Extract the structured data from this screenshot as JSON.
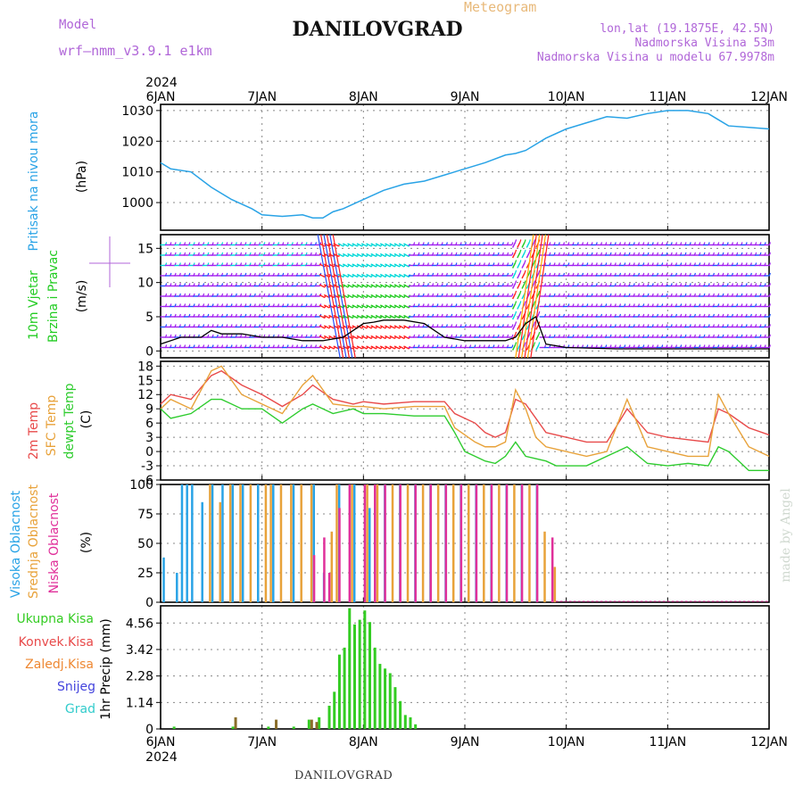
{
  "header": {
    "title": "DANILOVGRAD",
    "meteogram": "Meteogram",
    "model_label": "Model",
    "model_name": "wrf—nmm_v3.9.1  e1km",
    "lonlat": "lon,lat (19.1875E, 42.5N)",
    "altitude": "Nadmorska Visina 53m",
    "model_altitude": "Nadmorska Visina u modelu 67.9978m"
  },
  "footer": {
    "label": "DANILOVGRAD",
    "credit": "made by Angel"
  },
  "time_axis": {
    "year": "2024",
    "labels": [
      "6JAN",
      "7JAN",
      "8JAN",
      "9JAN",
      "10JAN",
      "11JAN",
      "12JAN"
    ]
  },
  "colors": {
    "pressure": "#29a3e6",
    "t2m": "#e84a4a",
    "sfc": "#e8a23a",
    "dew": "#2ecc2e",
    "cl_high": "#29a3e6",
    "cl_mid": "#e8a23a",
    "cl_low": "#e0309a",
    "precip": "#33cc22",
    "conv": "#e84a4a",
    "graupel": "#33cccc",
    "snow": "#4444dd",
    "frz": "#ee8833",
    "wind_a": "#a020f0",
    "wind_b": "#2050ff",
    "wind_c": "#00d8d8",
    "wind_d": "#22cc22",
    "wind_e": "#ff2020"
  },
  "chart_data": [
    {
      "type": "line",
      "panel": "pressure",
      "ylabels": [
        "Pritisak na nivou mora",
        "(hPa)"
      ],
      "yticks": [
        "1000",
        "1010",
        "1020",
        "1030"
      ],
      "ylim": [
        991,
        1032
      ],
      "xlim": [
        0,
        6
      ],
      "grid": true,
      "series": [
        {
          "x": [
            0,
            0.1,
            0.3,
            0.5,
            0.7,
            0.9,
            1.0,
            1.2,
            1.4,
            1.5,
            1.6,
            1.7,
            1.8,
            2.0,
            2.2,
            2.4,
            2.6,
            2.8,
            3.0,
            3.2,
            3.4,
            3.5,
            3.6,
            3.7,
            3.8,
            4.0,
            4.2,
            4.4,
            4.6,
            4.8,
            5.0,
            5.2,
            5.4,
            5.5,
            5.6,
            5.8,
            6.0
          ],
          "y": [
            1013,
            1011,
            1010,
            1005,
            1001,
            998,
            996,
            995.5,
            996,
            995,
            995,
            997,
            998,
            1001,
            1004,
            1006,
            1007,
            1009,
            1011,
            1013,
            1015.5,
            1016,
            1017,
            1019,
            1021,
            1024,
            1026,
            1028,
            1027.5,
            1029,
            1030,
            1030,
            1029,
            1027,
            1025,
            1024.5,
            1024
          ]
        }
      ]
    },
    {
      "type": "line",
      "panel": "wind",
      "ylabels": [
        "10m Vjetar",
        "Brzina i Pravac",
        "(m/s)"
      ],
      "yticks": [
        "0",
        "5",
        "10",
        "15"
      ],
      "ylim": [
        -1,
        17
      ],
      "xlim": [
        0,
        6
      ],
      "grid": true,
      "series": [
        {
          "name": "speed",
          "x": [
            0,
            0.2,
            0.4,
            0.5,
            0.6,
            0.8,
            1.0,
            1.2,
            1.4,
            1.6,
            1.8,
            1.9,
            2.0,
            2.1,
            2.2,
            2.4,
            2.6,
            2.8,
            3.0,
            3.2,
            3.4,
            3.5,
            3.6,
            3.7,
            3.8,
            4.0,
            4.5,
            5.0,
            5.5,
            6.0
          ],
          "y": [
            1,
            2,
            2,
            3,
            2.5,
            2.5,
            2,
            2,
            1.5,
            1.5,
            2,
            3,
            4,
            4.2,
            4.5,
            4.5,
            4,
            2,
            1.5,
            1.5,
            1.5,
            2,
            4,
            5,
            1,
            0.5,
            0.3,
            0.3,
            0.3,
            0.3
          ]
        }
      ]
    },
    {
      "type": "line",
      "panel": "temperature",
      "ylabels": [
        "2m Temp",
        "SFC Temp",
        "dewpt Temp",
        "(C)"
      ],
      "yticks": [
        "18",
        "15",
        "12",
        "9",
        "6",
        "3",
        "0",
        "-3",
        "-6"
      ],
      "ylim": [
        -6,
        19
      ],
      "xlim": [
        0,
        6
      ],
      "grid": true,
      "series": [
        {
          "name": "2m Temp",
          "x": [
            0,
            0.1,
            0.3,
            0.5,
            0.6,
            0.8,
            1.0,
            1.2,
            1.4,
            1.5,
            1.7,
            1.9,
            2.0,
            2.2,
            2.5,
            2.8,
            2.9,
            3.0,
            3.1,
            3.2,
            3.3,
            3.4,
            3.5,
            3.6,
            3.7,
            3.8,
            3.9,
            4.0,
            4.2,
            4.4,
            4.6,
            4.8,
            5.0,
            5.2,
            5.4,
            5.5,
            5.6,
            5.8,
            6.0
          ],
          "y": [
            10,
            12,
            11,
            16,
            17,
            14,
            12,
            9.5,
            12,
            14,
            11,
            10,
            10.5,
            10,
            10.5,
            10.5,
            8,
            7,
            6,
            4,
            3,
            4,
            11,
            10,
            7,
            4,
            3.5,
            3,
            2,
            2,
            9,
            4,
            3,
            2.5,
            2,
            9,
            8,
            5,
            3.5
          ]
        },
        {
          "name": "SFC Temp",
          "x": [
            0,
            0.1,
            0.3,
            0.5,
            0.6,
            0.8,
            1.0,
            1.2,
            1.4,
            1.5,
            1.7,
            1.9,
            2.0,
            2.2,
            2.5,
            2.8,
            2.9,
            3.0,
            3.1,
            3.2,
            3.3,
            3.4,
            3.5,
            3.6,
            3.7,
            3.8,
            3.9,
            4.0,
            4.2,
            4.4,
            4.6,
            4.8,
            5.0,
            5.2,
            5.4,
            5.5,
            5.6,
            5.8,
            6.0
          ],
          "y": [
            9,
            11,
            9,
            17,
            18,
            12,
            10,
            8,
            14,
            16,
            10,
            9.5,
            9.5,
            9,
            9.5,
            9.5,
            5,
            3.5,
            2,
            1,
            1,
            2,
            13,
            9,
            3,
            1,
            0.5,
            0,
            -1,
            0,
            11,
            1,
            0,
            -1,
            -1,
            12,
            8,
            1,
            -1
          ]
        },
        {
          "name": "dewpt Temp",
          "x": [
            0,
            0.1,
            0.3,
            0.5,
            0.6,
            0.8,
            1.0,
            1.2,
            1.4,
            1.5,
            1.7,
            1.9,
            2.0,
            2.2,
            2.5,
            2.8,
            2.9,
            3.0,
            3.1,
            3.2,
            3.3,
            3.4,
            3.5,
            3.6,
            3.7,
            3.8,
            3.9,
            4.0,
            4.2,
            4.4,
            4.6,
            4.8,
            5.0,
            5.2,
            5.4,
            5.5,
            5.6,
            5.8,
            6.0
          ],
          "y": [
            9,
            7,
            8,
            11,
            11,
            9,
            9,
            6,
            9,
            10,
            8,
            9,
            8,
            8,
            7.5,
            7.5,
            4,
            0,
            -1,
            -2,
            -2.5,
            -1,
            2,
            -1,
            -1.5,
            -2,
            -3,
            -3,
            -3,
            -1,
            1,
            -2.5,
            -3,
            -2.5,
            -3,
            1,
            0,
            -4,
            -4
          ]
        }
      ]
    },
    {
      "type": "bar",
      "panel": "clouds",
      "ylabels": [
        "Visoka Oblacnost",
        "Srednja Oblacnost",
        "Niska Oblacnost",
        "(%)"
      ],
      "yticks": [
        "0",
        "25",
        "50",
        "75",
        "100"
      ],
      "ylim": [
        0,
        100
      ],
      "xlim": [
        0,
        6
      ],
      "grid": true,
      "series": [
        {
          "name": "Visoka Oblacnost",
          "x": [
            0.02,
            0.15,
            0.2,
            0.25,
            0.3,
            0.4,
            0.5,
            0.6,
            0.7,
            0.8,
            0.95,
            1.1,
            1.3,
            1.5,
            1.6,
            1.75,
            1.9,
            2.05,
            2.2,
            2.35,
            2.5,
            2.65,
            2.8,
            2.95,
            3.1,
            3.25,
            3.4,
            3.55,
            3.7
          ],
          "y": [
            38,
            25,
            100,
            100,
            100,
            85,
            100,
            100,
            100,
            100,
            100,
            100,
            100,
            100,
            25,
            100,
            100,
            80,
            100,
            100,
            100,
            100,
            100,
            100,
            100,
            100,
            100,
            100,
            100
          ]
        },
        {
          "name": "Srednja Oblacnost",
          "x": [
            0.45,
            0.55,
            0.65,
            0.75,
            0.85,
            1.0,
            1.05,
            1.15,
            1.25,
            1.35,
            1.45,
            1.65,
            1.7,
            1.85,
            2.0,
            2.1,
            2.25,
            2.4,
            2.55,
            2.7,
            2.85,
            3.0,
            3.15,
            3.3,
            3.45,
            3.6,
            3.75,
            3.85
          ],
          "y": [
            100,
            85,
            100,
            100,
            100,
            100,
            100,
            100,
            100,
            100,
            100,
            60,
            100,
            100,
            100,
            100,
            100,
            100,
            100,
            100,
            100,
            100,
            100,
            100,
            100,
            100,
            60,
            30
          ]
        },
        {
          "name": "Niska Oblacnost",
          "x": [
            1.45,
            1.55,
            1.6,
            1.7,
            1.8,
            1.95,
            2.05,
            2.15,
            2.3,
            2.45,
            2.6,
            2.75,
            2.9,
            3.05,
            3.2,
            3.35,
            3.5,
            3.65,
            3.8
          ],
          "y": [
            40,
            55,
            25,
            80,
            100,
            100,
            100,
            100,
            100,
            100,
            100,
            100,
            100,
            100,
            100,
            100,
            100,
            100,
            55
          ]
        }
      ]
    },
    {
      "type": "bar",
      "panel": "precip",
      "ylabels": [
        "1hr Precip (mm)"
      ],
      "legend": [
        "Ukupna Kisa",
        "Konvek.Kisa",
        "Zaledj.Kisa",
        "Snijeg",
        "Grad"
      ],
      "yticks": [
        "0",
        "1.14",
        "2.28",
        "3.42",
        "4.56"
      ],
      "ylim": [
        0,
        5.3
      ],
      "xlim": [
        0,
        6
      ],
      "grid": true,
      "series": [
        {
          "name": "Ukupna Kisa",
          "x": [
            0.12,
            0.7,
            1.05,
            1.3,
            1.45,
            1.55,
            1.65,
            1.7,
            1.75,
            1.8,
            1.85,
            1.9,
            1.95,
            2.0,
            2.05,
            2.1,
            2.15,
            2.2,
            2.25,
            2.3,
            2.35,
            2.4,
            2.45,
            2.5
          ],
          "y": [
            0.1,
            0.1,
            0.1,
            0.1,
            0.4,
            0.5,
            1.0,
            1.6,
            3.2,
            3.5,
            5.2,
            4.5,
            4.7,
            5.1,
            4.6,
            3.5,
            2.8,
            2.6,
            2.4,
            1.8,
            1.2,
            0.6,
            0.5,
            0.2
          ]
        },
        {
          "name": "Konvek.Kisa",
          "x": [
            0.7,
            1.1,
            1.45,
            1.5
          ],
          "y": [
            0.5,
            0.4,
            0.4,
            0.3
          ]
        }
      ]
    }
  ]
}
